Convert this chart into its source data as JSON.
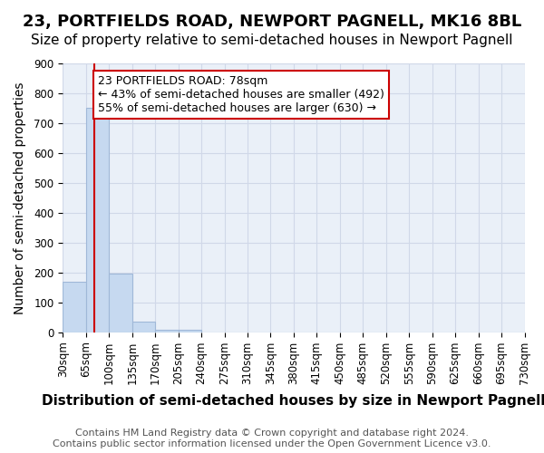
{
  "title": "23, PORTFIELDS ROAD, NEWPORT PAGNELL, MK16 8BL",
  "subtitle": "Size of property relative to semi-detached houses in Newport Pagnell",
  "xlabel": "Distribution of semi-detached houses by size in Newport Pagnell",
  "ylabel": "Number of semi-detached properties",
  "footer1": "Contains HM Land Registry data © Crown copyright and database right 2024.",
  "footer2": "Contains public sector information licensed under the Open Government Licence v3.0.",
  "annotation_line1": "23 PORTFIELDS ROAD: 78sqm",
  "annotation_line2": "← 43% of semi-detached houses are smaller (492)",
  "annotation_line3": "55% of semi-detached houses are larger (630) →",
  "tick_labels": [
    "30sqm",
    "65sqm",
    "100sqm",
    "135sqm",
    "170sqm",
    "205sqm",
    "240sqm",
    "275sqm",
    "310sqm",
    "345sqm",
    "380sqm",
    "415sqm",
    "450sqm",
    "485sqm",
    "520sqm",
    "555sqm",
    "590sqm",
    "625sqm",
    "660sqm",
    "695sqm",
    "730sqm"
  ],
  "bar_heights": [
    170,
    750,
    195,
    35,
    8,
    8,
    0,
    0,
    0,
    0,
    0,
    0,
    0,
    0,
    0,
    0,
    0,
    0,
    0,
    0
  ],
  "bar_color": "#c6d9f0",
  "bar_edge_color": "#a0b8d8",
  "red_line_color": "#cc0000",
  "annotation_box_color": "#ffffff",
  "annotation_box_edge": "#cc0000",
  "grid_color": "#d0d8e8",
  "bg_color": "#eaf0f8",
  "ylim": [
    0,
    900
  ],
  "yticks": [
    0,
    100,
    200,
    300,
    400,
    500,
    600,
    700,
    800,
    900
  ],
  "title_fontsize": 13,
  "subtitle_fontsize": 11,
  "xlabel_fontsize": 11,
  "ylabel_fontsize": 10,
  "tick_fontsize": 8.5,
  "annotation_fontsize": 9,
  "footer_fontsize": 8
}
